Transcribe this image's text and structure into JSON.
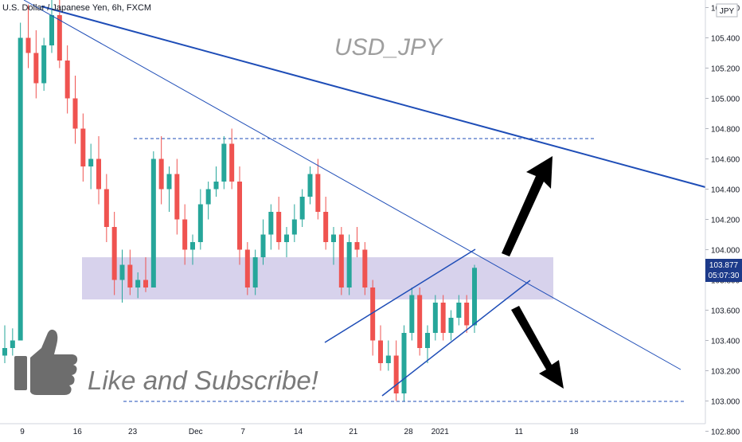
{
  "header": {
    "symbol_title": "U.S. Dollar / Japanese Yen, 6h, FXCM",
    "currency_badge": "JPY"
  },
  "overlay": {
    "watermark": "USD_JPY",
    "cta_text": "Like and Subscribe!",
    "cta_icon": "thumbs-up-icon"
  },
  "price_scale": {
    "ticks": [
      "105.600",
      "105.400",
      "105.200",
      "105.000",
      "104.800",
      "104.600",
      "104.400",
      "104.200",
      "104.000",
      "103.800",
      "103.600",
      "103.400",
      "103.200",
      "103.000",
      "102.800"
    ],
    "last_price": "103.877",
    "countdown": "05:07:30"
  },
  "time_scale": {
    "ticks": [
      "9",
      "16",
      "23",
      "Dec",
      "7",
      "14",
      "21",
      "28",
      "2021",
      "11",
      "18"
    ]
  },
  "colors": {
    "bull": "#26a69a",
    "bear": "#ef5350",
    "trendline": "#1e4db7",
    "zone": "#c9c3e6",
    "badge_bg": "#1c3a8a"
  },
  "chart_data": {
    "type": "candlestick",
    "timeframe": "6h",
    "y_axis": {
      "min": 102.85,
      "max": 105.65
    },
    "candles_ohlc": [
      [
        103.3,
        103.5,
        103.25,
        103.35
      ],
      [
        103.35,
        103.48,
        103.3,
        103.4
      ],
      [
        103.4,
        105.5,
        103.4,
        105.4
      ],
      [
        105.4,
        105.62,
        105.2,
        105.3
      ],
      [
        105.3,
        105.45,
        105.0,
        105.1
      ],
      [
        105.1,
        105.4,
        105.05,
        105.35
      ],
      [
        105.35,
        105.7,
        105.3,
        105.55
      ],
      [
        105.55,
        105.65,
        105.2,
        105.25
      ],
      [
        105.25,
        105.35,
        104.9,
        105.0
      ],
      [
        105.0,
        105.15,
        104.7,
        104.8
      ],
      [
        104.8,
        104.9,
        104.45,
        104.55
      ],
      [
        104.55,
        104.7,
        104.4,
        104.6
      ],
      [
        104.6,
        104.75,
        104.3,
        104.4
      ],
      [
        104.4,
        104.5,
        104.05,
        104.15
      ],
      [
        104.15,
        104.25,
        103.7,
        103.8
      ],
      [
        103.8,
        104.0,
        103.65,
        103.9
      ],
      [
        103.9,
        104.0,
        103.7,
        103.75
      ],
      [
        103.75,
        103.85,
        103.68,
        103.8
      ],
      [
        103.8,
        103.95,
        103.72,
        103.75
      ],
      [
        103.75,
        104.65,
        103.75,
        104.6
      ],
      [
        104.6,
        104.75,
        104.3,
        104.4
      ],
      [
        104.4,
        104.55,
        104.25,
        104.5
      ],
      [
        104.5,
        104.6,
        104.1,
        104.2
      ],
      [
        104.2,
        104.3,
        103.9,
        104.0
      ],
      [
        104.0,
        104.1,
        103.9,
        104.05
      ],
      [
        104.05,
        104.4,
        104.0,
        104.3
      ],
      [
        104.3,
        104.45,
        104.2,
        104.4
      ],
      [
        104.4,
        104.55,
        104.35,
        104.45
      ],
      [
        104.45,
        104.75,
        104.4,
        104.7
      ],
      [
        104.7,
        104.8,
        104.4,
        104.45
      ],
      [
        104.45,
        104.55,
        103.9,
        104.0
      ],
      [
        104.0,
        104.05,
        103.7,
        103.75
      ],
      [
        103.75,
        104.0,
        103.7,
        103.95
      ],
      [
        103.95,
        104.2,
        103.9,
        104.1
      ],
      [
        104.1,
        104.3,
        104.0,
        104.25
      ],
      [
        104.25,
        104.35,
        104.0,
        104.05
      ],
      [
        104.05,
        104.15,
        103.95,
        104.1
      ],
      [
        104.1,
        104.3,
        104.05,
        104.2
      ],
      [
        104.2,
        104.4,
        104.15,
        104.35
      ],
      [
        104.35,
        104.55,
        104.3,
        104.5
      ],
      [
        104.5,
        104.6,
        104.2,
        104.25
      ],
      [
        104.25,
        104.35,
        104.0,
        104.05
      ],
      [
        104.05,
        104.15,
        103.9,
        104.1
      ],
      [
        104.1,
        104.15,
        103.7,
        103.75
      ],
      [
        103.75,
        104.1,
        103.7,
        104.05
      ],
      [
        104.05,
        104.15,
        103.95,
        104.0
      ],
      [
        104.0,
        104.05,
        103.7,
        103.75
      ],
      [
        103.75,
        103.8,
        103.3,
        103.4
      ],
      [
        103.4,
        103.5,
        103.2,
        103.25
      ],
      [
        103.25,
        103.4,
        103.2,
        103.3
      ],
      [
        103.3,
        103.4,
        103.0,
        103.05
      ],
      [
        103.05,
        103.5,
        103.0,
        103.45
      ],
      [
        103.45,
        103.75,
        103.4,
        103.7
      ],
      [
        103.7,
        103.75,
        103.3,
        103.35
      ],
      [
        103.35,
        103.5,
        103.25,
        103.45
      ],
      [
        103.45,
        103.7,
        103.4,
        103.65
      ],
      [
        103.65,
        103.7,
        103.4,
        103.45
      ],
      [
        103.45,
        103.6,
        103.4,
        103.55
      ],
      [
        103.55,
        103.7,
        103.5,
        103.65
      ],
      [
        103.65,
        103.7,
        103.45,
        103.5
      ],
      [
        103.5,
        103.9,
        103.45,
        103.88
      ]
    ],
    "annotations": {
      "horizontal_levels": [
        104.7,
        102.95
      ],
      "support_zone": [
        103.65,
        103.92
      ],
      "rising_channel": "lower-right",
      "arrows": [
        "up",
        "down"
      ]
    }
  }
}
